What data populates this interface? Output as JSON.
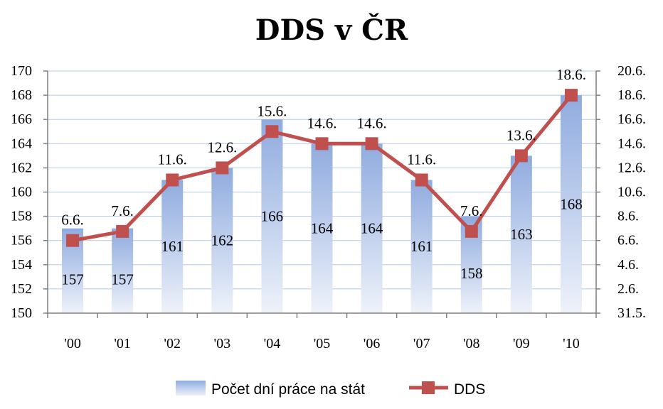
{
  "chart_data": {
    "type": "bar+line",
    "title": "DDS v ČR",
    "categories": [
      "'00",
      "'01",
      "'02",
      "'03",
      "'04",
      "'05",
      "'06",
      "'07",
      "'08",
      "'09",
      "'10"
    ],
    "series": [
      {
        "name": "Počet dní práce na stát",
        "type": "bar",
        "axis": "left",
        "values": [
          157,
          157,
          161,
          162,
          166,
          164,
          164,
          161,
          158,
          163,
          168
        ],
        "labels": [
          "157",
          "157",
          "161",
          "162",
          "166",
          "164",
          "164",
          "161",
          "158",
          "163",
          "168"
        ]
      },
      {
        "name": "DDS",
        "type": "line",
        "axis": "right",
        "values": [
          156,
          156.75,
          161,
          162,
          165,
          164,
          164,
          161,
          156.75,
          163,
          168
        ],
        "labels": [
          "6.6.",
          "7.6.",
          "11.6.",
          "12.6.",
          "15.6.",
          "14.6.",
          "14.6.",
          "11.6.",
          "7.6.",
          "13.6.",
          "18.6."
        ]
      }
    ],
    "left_axis": {
      "ylim": [
        150,
        170
      ],
      "ticks": [
        "150",
        "152",
        "154",
        "156",
        "158",
        "160",
        "162",
        "164",
        "166",
        "168",
        "170"
      ]
    },
    "right_axis": {
      "ticks": [
        "31.5.",
        "2.6.",
        "4.6.",
        "6.6.",
        "8.6.",
        "10.6.",
        "12.6.",
        "14.6.",
        "16.6.",
        "18.6.",
        "20.6."
      ]
    },
    "grid": true,
    "legend": "bottom",
    "colors": {
      "bar_top": "#8fabdf",
      "bar_bottom": "#eef2fa",
      "line": "#c0504d",
      "grid": "#b7c7e6",
      "axis": "#7f7f7f"
    }
  }
}
